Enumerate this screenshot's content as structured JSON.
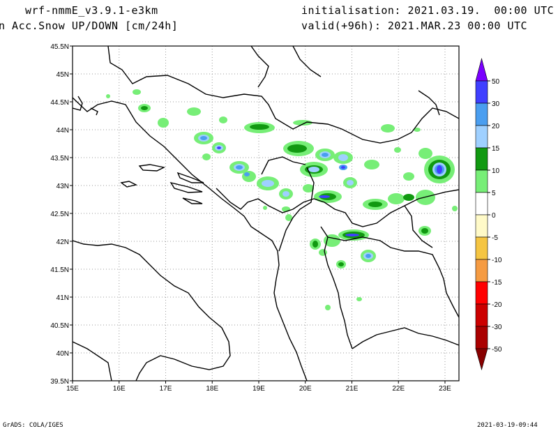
{
  "header": {
    "model": "wrf-nmmE_v3.9.1-e3km",
    "variable": "n Acc.Snow UP/DOWN [cm/24h]",
    "init": "initialisation: 2021.03.19.  00:00 UTC",
    "valid": "valid(+96h): 2021.MAR.23 00:00 UTC"
  },
  "map": {
    "lon_range": [
      15,
      23.3
    ],
    "lat_range": [
      39.5,
      45.5
    ],
    "lon_ticks": [
      "15E",
      "16E",
      "17E",
      "18E",
      "19E",
      "20E",
      "21E",
      "22E",
      "23E"
    ],
    "lat_ticks": [
      "45.5N",
      "45N",
      "44.5N",
      "44N",
      "43.5N",
      "43N",
      "42.5N",
      "42N",
      "41.5N",
      "41N",
      "40.5N",
      "40N",
      "39.5N"
    ],
    "grid": "dotted"
  },
  "colorbar": {
    "labels": [
      "50",
      "30",
      "20",
      "15",
      "10",
      "5",
      "0",
      "-5",
      "-10",
      "-15",
      "-20",
      "-30",
      "-50"
    ],
    "colors": [
      "#7a00ff",
      "#3f3fff",
      "#4a9ef0",
      "#9fd0ff",
      "#119911",
      "#77ee77",
      "#ffffff",
      "#fffac8",
      "#f5c542",
      "#f59b42",
      "#ff0000",
      "#cc0000",
      "#aa0000",
      "#880000"
    ]
  },
  "footer": {
    "left": "GrADS: COLA/IGES",
    "right": "2021-03-19-09:44"
  }
}
